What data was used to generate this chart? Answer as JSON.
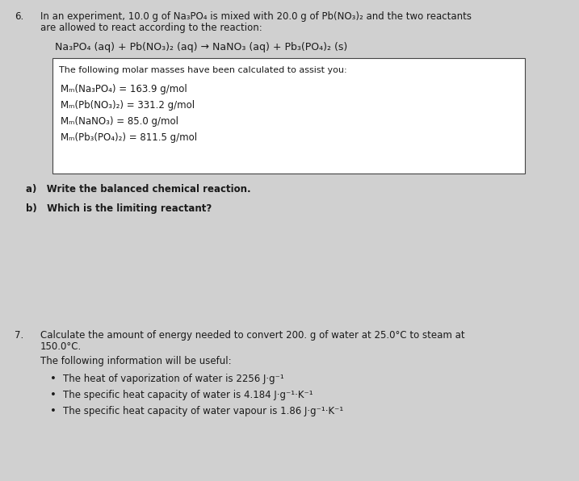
{
  "bg_color": "#d0d0d0",
  "page1_bg": "#ffffff",
  "page2_bg": "#f5f5f5",
  "q6_number": "6.",
  "q6_text1": "In an experiment, 10.0 g of Na₃PO₄ is mixed with 20.0 g of Pb(NO₃)₂ and the two reactants",
  "q6_text2": "are allowed to react according to the reaction:",
  "q6_reaction": "Na₃PO₄ (aq) + Pb(NO₃)₂ (aq) → NaNO₃ (aq) + Pb₃(PO₄)₂ (s)",
  "box_text_title": "The following molar masses have been calculated to assist you:",
  "box_line1": "Mₘ(Na₃PO₄) = 163.9 g/mol",
  "box_line2": "Mₘ(Pb(NO₃)₂) = 331.2 g/mol",
  "box_line3": "Mₘ(NaNO₃) = 85.0 g/mol",
  "box_line4": "Mₘ(Pb₃(PO₄)₂) = 811.5 g/mol",
  "q6a": "a)   Write the balanced chemical reaction.",
  "q6b": "b)   Which is the limiting reactant?",
  "q7_number": "7.",
  "q7_text1": "Calculate the amount of energy needed to convert 200. g of water at 25.0°C to steam at",
  "q7_text2": "150.0°C.",
  "q7_info_header": "The following information will be useful:",
  "q7_bullet1": "The heat of vaporization of water is 2256 J·g⁻¹",
  "q7_bullet2": "The specific heat capacity of water is 4.184 J·g⁻¹·K⁻¹",
  "q7_bullet3": "The specific heat capacity of water vapour is 1.86 J·g⁻¹·K⁻¹",
  "text_color": "#1a1a1a",
  "font_size": 8.5
}
